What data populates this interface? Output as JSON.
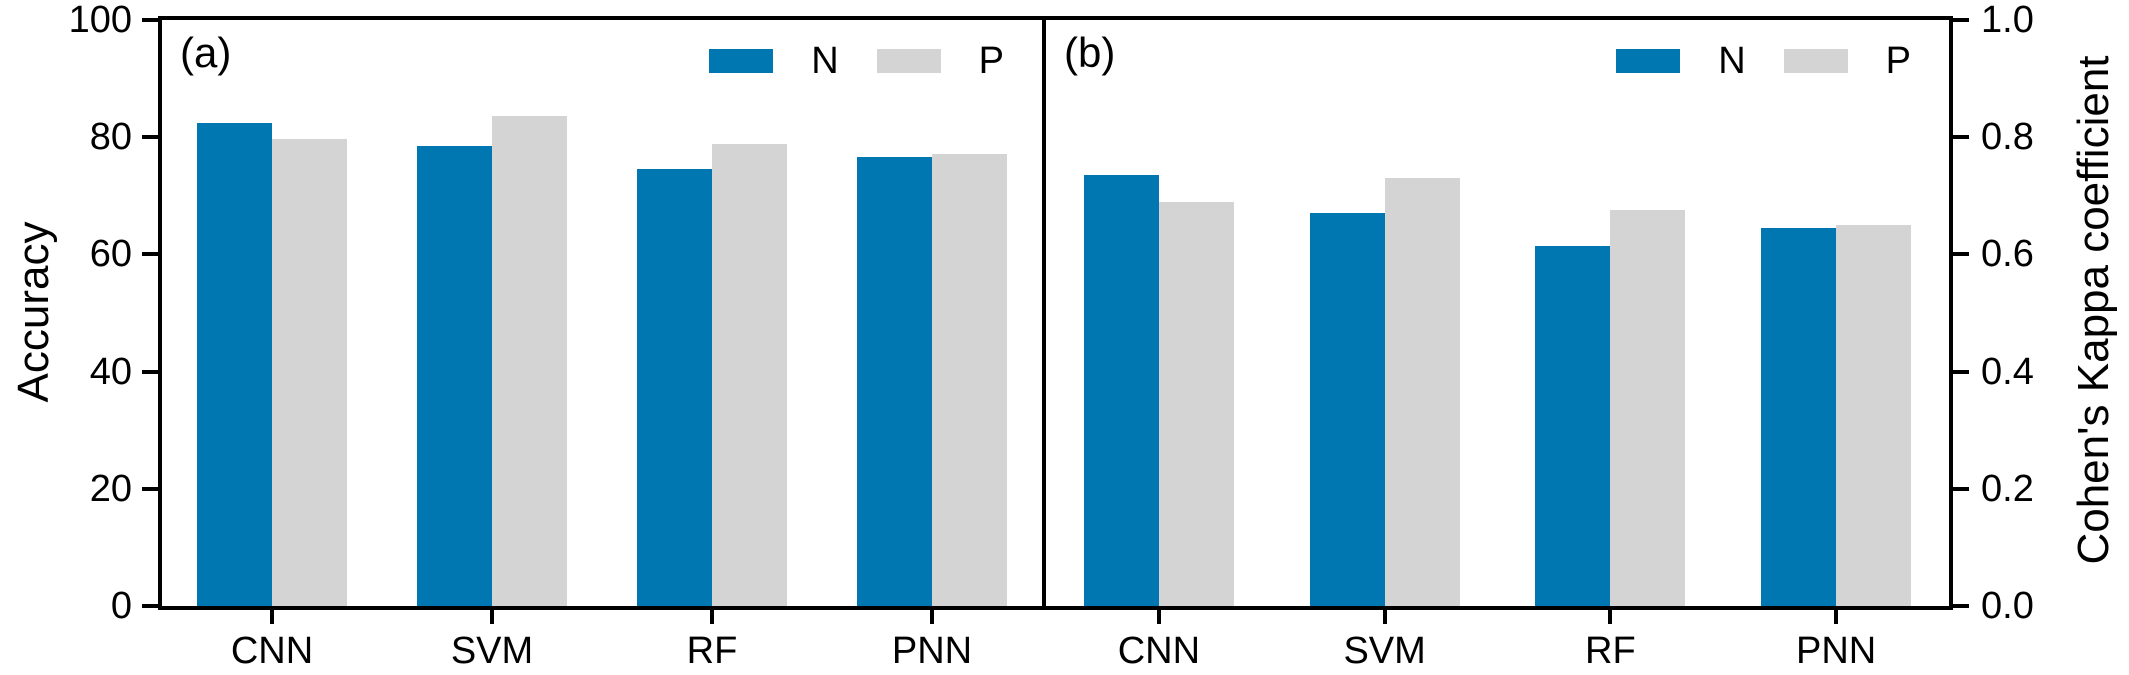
{
  "figure": {
    "background": "#ffffff",
    "axis_color": "#000000",
    "series_colors": {
      "N": "#0077b0",
      "P": "#d4d4d4"
    }
  },
  "chart_data": [
    {
      "type": "bar",
      "panel_label": "(a)",
      "ylabel": "Accuracy",
      "ylabel_side": "left",
      "ylim": [
        0,
        100
      ],
      "yticks": [
        0,
        20,
        40,
        60,
        80,
        100
      ],
      "ytick_labels": [
        "0",
        "20",
        "40",
        "60",
        "80",
        "100"
      ],
      "categories": [
        "CNN",
        "SVM",
        "RF",
        "PNN"
      ],
      "series": [
        {
          "name": "N",
          "color": "#0077b0",
          "values": [
            82.5,
            78.5,
            74.5,
            76.7
          ]
        },
        {
          "name": "P",
          "color": "#d4d4d4",
          "values": [
            79.7,
            83.6,
            78.9,
            77.1
          ]
        }
      ],
      "legend_position": "top-right",
      "grid": false
    },
    {
      "type": "bar",
      "panel_label": "(b)",
      "ylabel": "Cohen's Kappa coefficient",
      "ylabel_side": "right",
      "ylim": [
        0,
        1
      ],
      "yticks": [
        0,
        0.2,
        0.4,
        0.6,
        0.8,
        1.0
      ],
      "ytick_labels": [
        "0.0",
        "0.2",
        "0.4",
        "0.6",
        "0.8",
        "1.0"
      ],
      "categories": [
        "CNN",
        "SVM",
        "RF",
        "PNN"
      ],
      "series": [
        {
          "name": "N",
          "color": "#0077b0",
          "values": [
            0.735,
            0.67,
            0.615,
            0.645
          ]
        },
        {
          "name": "P",
          "color": "#d4d4d4",
          "values": [
            0.69,
            0.73,
            0.675,
            0.65
          ]
        }
      ],
      "legend_position": "top-right",
      "grid": false
    }
  ]
}
